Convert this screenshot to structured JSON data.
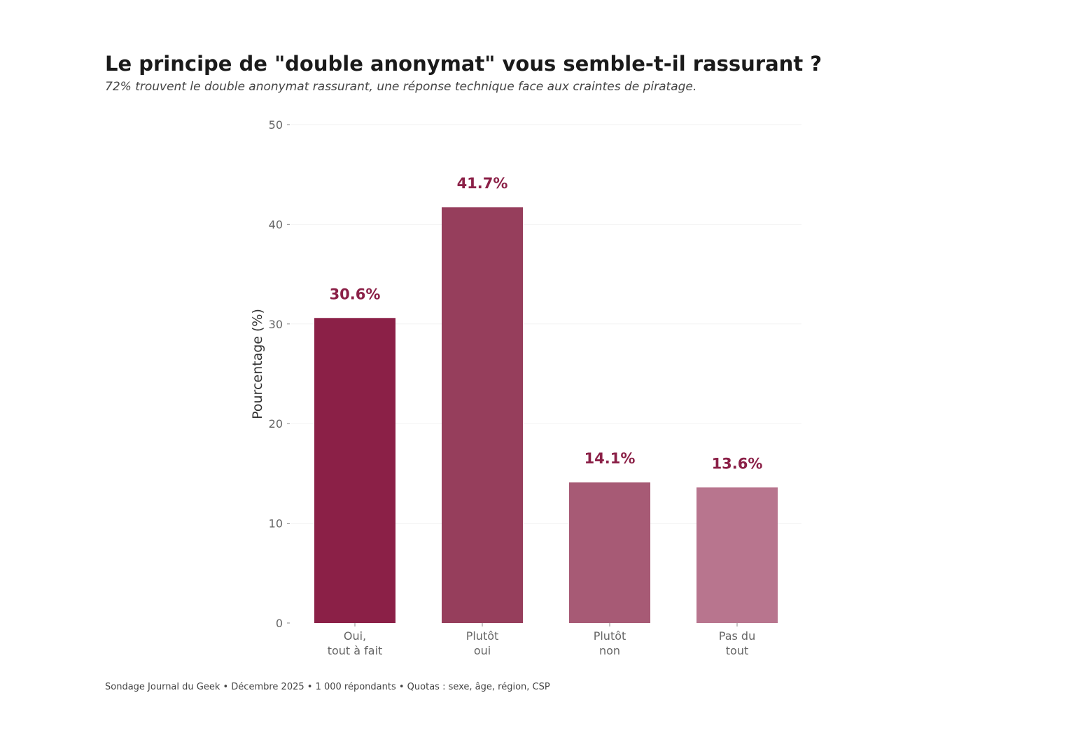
{
  "header": {
    "title": "Le principe de \"double anonymat\" vous semble-t-il rassurant ?",
    "subtitle": "72% trouvent le double anonymat rassurant, une réponse technique face aux craintes de piratage."
  },
  "footer": {
    "source": "Sondage Journal du Geek • Décembre 2025 • 1 000 répondants • Quotas : sexe, âge, région, CSP"
  },
  "chart_data": {
    "type": "bar",
    "categories": [
      [
        "Oui,",
        "tout à fait"
      ],
      [
        "Plutôt",
        "oui"
      ],
      [
        "Plutôt",
        "non"
      ],
      [
        "Pas du",
        "tout"
      ]
    ],
    "values": [
      30.6,
      41.7,
      14.1,
      13.6
    ],
    "value_labels": [
      "30.6%",
      "41.7%",
      "14.1%",
      "13.6%"
    ],
    "bar_colors": [
      "#8b2047",
      "#963e5c",
      "#a75a75",
      "#b8758e"
    ],
    "label_color": "#8b2047",
    "title": "Le principe de \"double anonymat\" vous semble-t-il rassurant ?",
    "subtitle": "72% trouvent le double anonymat rassurant, une réponse technique face aux craintes de piratage.",
    "xlabel": "",
    "ylabel": "Pourcentage (%)",
    "ylim": [
      0,
      50
    ],
    "yticks": [
      0,
      10,
      20,
      30,
      40,
      50
    ],
    "grid": true,
    "legend": "none"
  }
}
